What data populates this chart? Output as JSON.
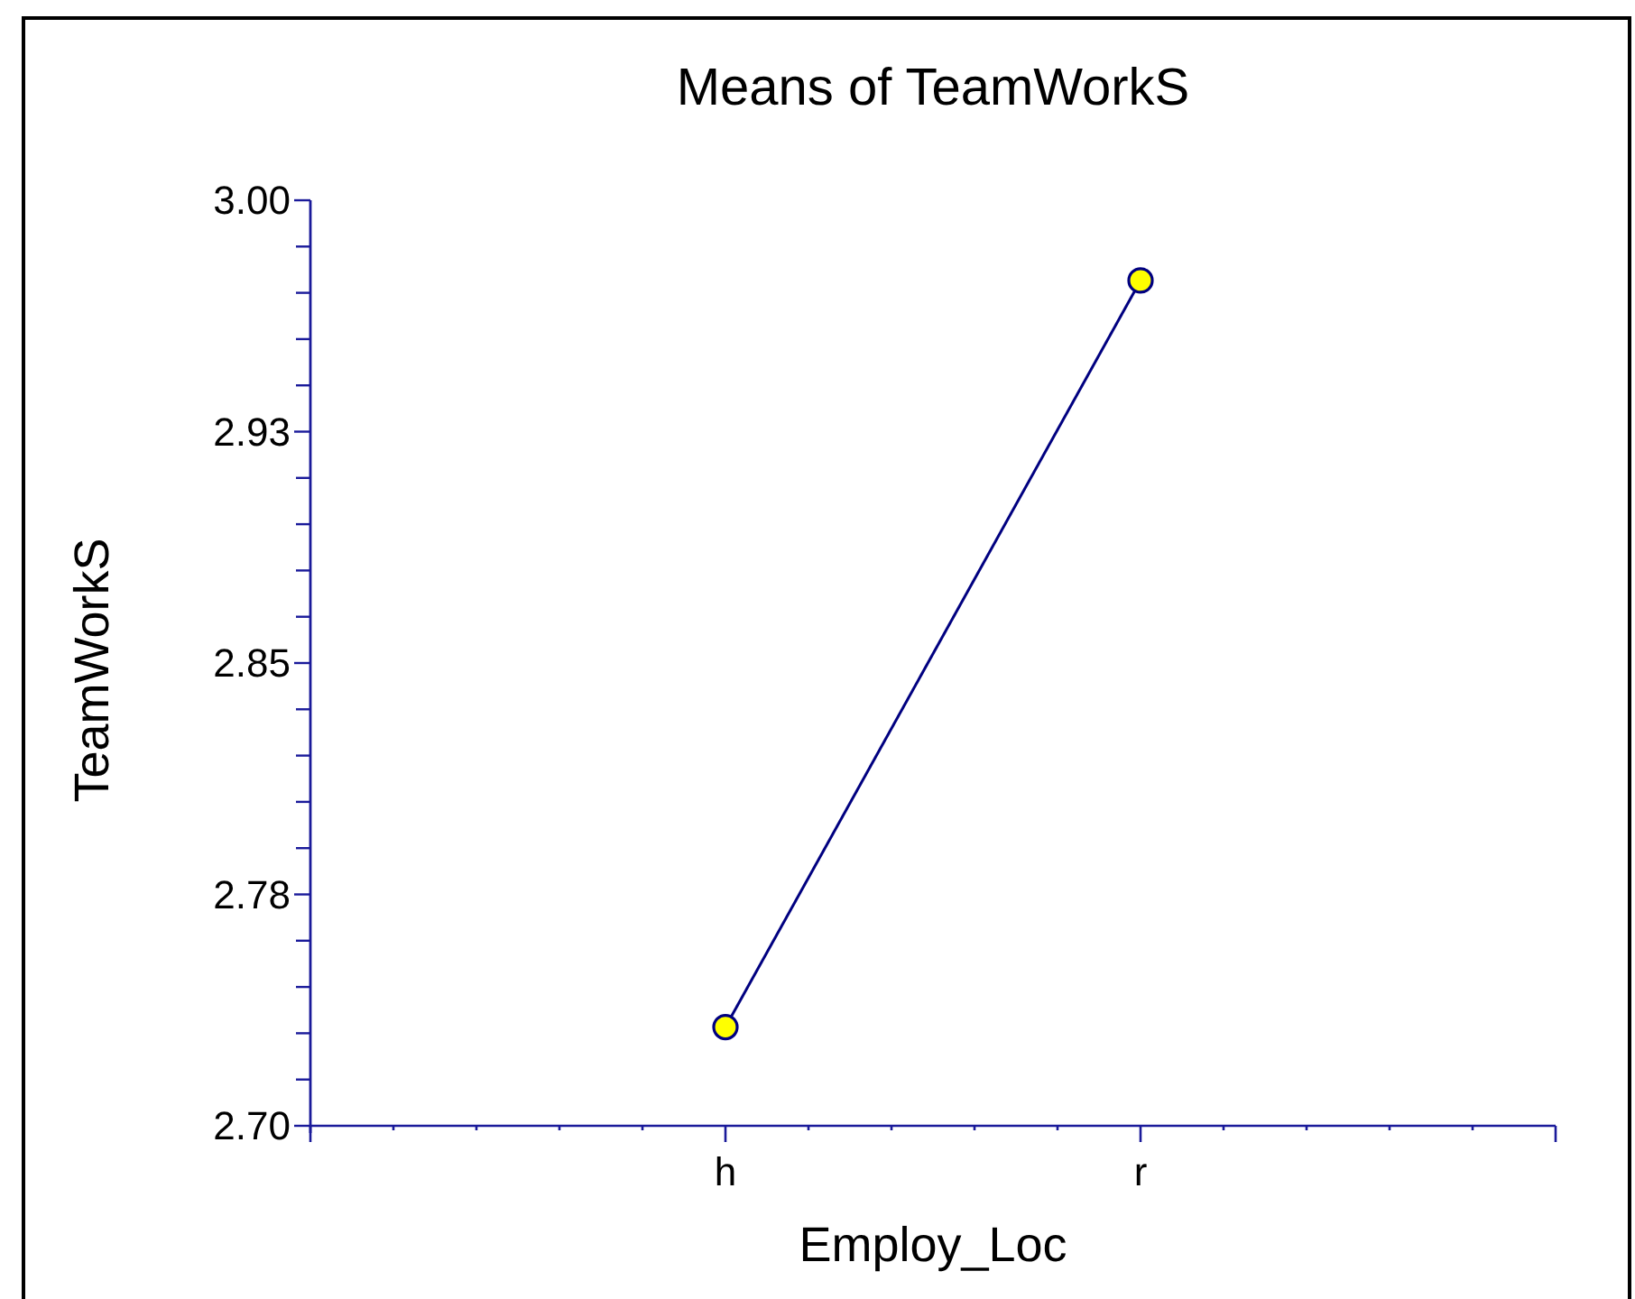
{
  "chart_data": {
    "type": "line",
    "title": "Means of TeamWorkS",
    "xlabel": "Employ_Loc",
    "ylabel": "TeamWorkS",
    "categories": [
      "h",
      "r"
    ],
    "series": [
      {
        "color": "#000080",
        "values": [
          2.732,
          2.974
        ]
      }
    ],
    "ylim": [
      2.7,
      3.0
    ],
    "yticks": [
      {
        "value": 2.7,
        "label": "2.70"
      },
      {
        "value": 2.715,
        "label": null
      },
      {
        "value": 2.73,
        "label": null
      },
      {
        "value": 2.745,
        "label": null
      },
      {
        "value": 2.76,
        "label": null
      },
      {
        "value": 2.775,
        "label": "2.78"
      },
      {
        "value": 2.79,
        "label": null
      },
      {
        "value": 2.805,
        "label": null
      },
      {
        "value": 2.82,
        "label": null
      },
      {
        "value": 2.835,
        "label": null
      },
      {
        "value": 2.85,
        "label": "2.85"
      },
      {
        "value": 2.865,
        "label": null
      },
      {
        "value": 2.88,
        "label": null
      },
      {
        "value": 2.895,
        "label": null
      },
      {
        "value": 2.91,
        "label": null
      },
      {
        "value": 2.925,
        "label": "2.93"
      },
      {
        "value": 2.94,
        "label": null
      },
      {
        "value": 2.955,
        "label": null
      },
      {
        "value": 2.97,
        "label": null
      },
      {
        "value": 2.985,
        "label": null
      },
      {
        "value": 3.0,
        "label": "3.00"
      }
    ],
    "marker": "circle",
    "line_style": "solid"
  }
}
